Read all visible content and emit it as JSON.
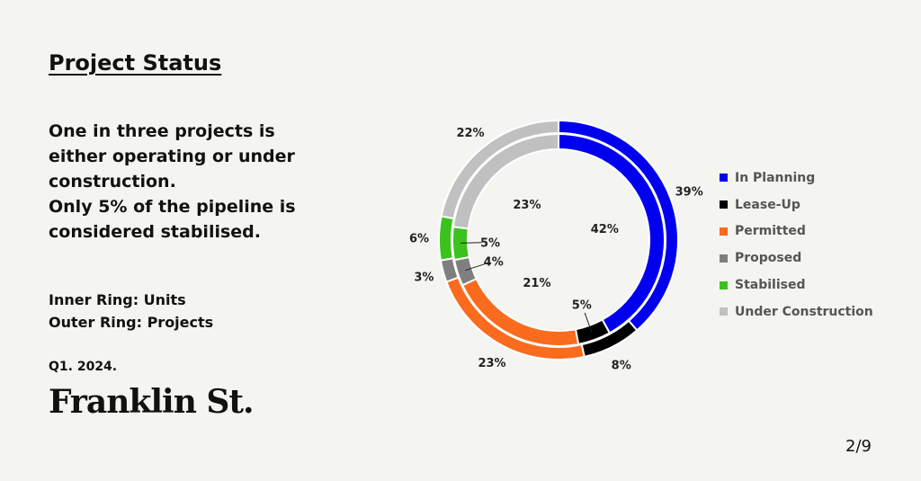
{
  "title": "Project Status",
  "headline": [
    "One in three projects is",
    "either operating or under",
    "construction.",
    "Only 5% of the pipeline is",
    "considered stabilised."
  ],
  "ring_labels": {
    "inner": "Inner Ring: Units",
    "outer": "Outer Ring: Projects"
  },
  "date": "Q1. 2024.",
  "brand": "Franklin St.",
  "page": "2/9",
  "chart_data": {
    "type": "pie",
    "subtype": "double-donut",
    "categories": [
      "In Planning",
      "Lease-Up",
      "Permitted",
      "Proposed",
      "Stabilised",
      "Under Construction"
    ],
    "colors": [
      "#0000ee",
      "#000000",
      "#fa6b1e",
      "#7f7f7f",
      "#3cc21c",
      "#c0c0c0"
    ],
    "series": [
      {
        "name": "Projects",
        "values": [
          39,
          8,
          23,
          3,
          6,
          22
        ],
        "labels": [
          "39%",
          "8%",
          "23%",
          "3%",
          "6%",
          "22%"
        ]
      },
      {
        "name": "Units",
        "values": [
          42,
          5,
          21,
          4,
          5,
          23
        ],
        "labels": [
          "42%",
          "5%",
          "21%",
          "4%",
          "5%",
          "23%"
        ]
      }
    ],
    "legend": "right"
  }
}
